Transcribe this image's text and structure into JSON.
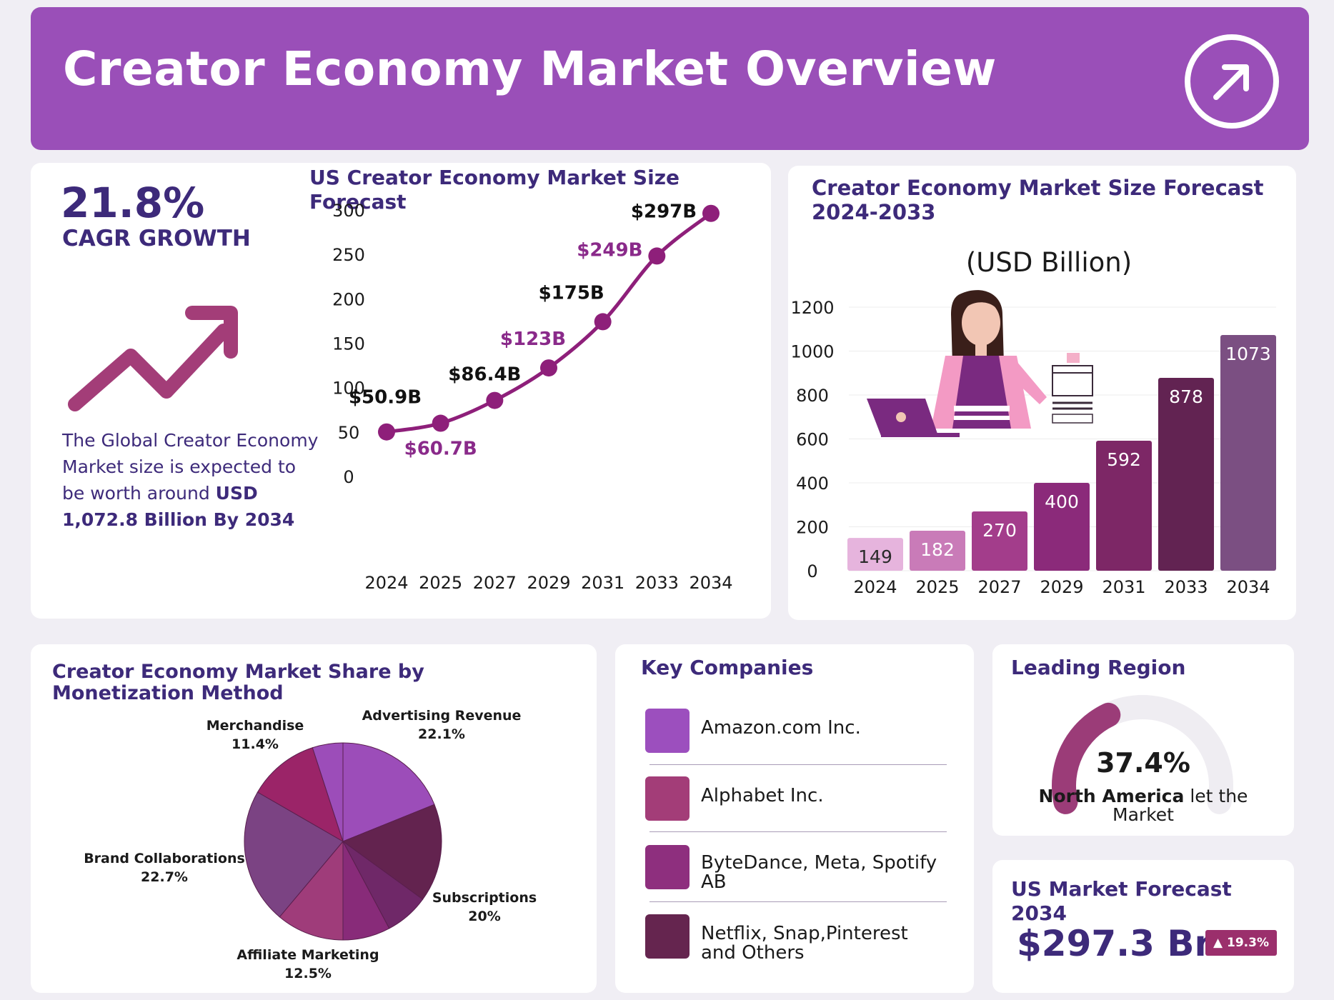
{
  "header": {
    "title": "Creator Economy Market Overview",
    "action_icon": "arrow-up-right-icon"
  },
  "cagr": {
    "value": "21.8%",
    "label": "CAGR GROWTH",
    "icon": "trend-up-arrow-icon",
    "desc_text": "The Global Creator Economy Market size is expected to be worth around ",
    "desc_bold": "USD 1,072.8 Billion By 2034"
  },
  "colors": {
    "banner": "#9a4fb8",
    "title_text": "#3d2a7a",
    "line": "#8e1f7a",
    "label_magenta": "#8a2a8a",
    "bars": [
      "#e6b4dd",
      "#c97bb8",
      "#a33d8b",
      "#8b2a7a",
      "#7d2766",
      "#622352",
      "#7b4f82"
    ],
    "pie": [
      "#9c4db9",
      "#63234f",
      "#6f2868",
      "#882b79",
      "#9f3c7a",
      "#7b4383",
      "#9b2468"
    ],
    "companies": [
      "#9c4fbe",
      "#a33d78",
      "#8e2f7e",
      "#65254f"
    ],
    "gauge_fill": "#9b3c78",
    "gauge_track": "#efedf2",
    "badge": "#9b2f6c"
  },
  "chart_data": [
    {
      "type": "line",
      "title": "US Creator Economy Market Size Forecast",
      "x": [
        "2024",
        "2025",
        "2027",
        "2029",
        "2031",
        "2033",
        "2034"
      ],
      "values": [
        50.9,
        60.7,
        86.4,
        123,
        175,
        249,
        297
      ],
      "point_labels": [
        "$50.9B",
        "$60.7B",
        "$86.4B",
        "$123B",
        "$175B",
        "$249B",
        "$297B"
      ],
      "label_colors": [
        "dark",
        "magenta",
        "dark",
        "magenta",
        "dark",
        "magenta",
        "dark"
      ],
      "ylim": [
        0,
        300
      ],
      "yticks": [
        0,
        50,
        100,
        150,
        200,
        250,
        300
      ],
      "grid": false
    },
    {
      "type": "bar",
      "title": "Creator Economy Market Size Forecast 2024-2033",
      "subtitle": "(USD Billion)",
      "categories": [
        "2024",
        "2025",
        "2027",
        "2029",
        "2031",
        "2033",
        "2034"
      ],
      "values": [
        149,
        182,
        270,
        400,
        592,
        878,
        1073
      ],
      "ylim": [
        0,
        1200
      ],
      "yticks": [
        0,
        200,
        400,
        600,
        800,
        1000,
        1200
      ],
      "grid": true
    },
    {
      "type": "pie",
      "title": "Creator Economy Market Share by Monetization Method",
      "labels": [
        "Advertising Revenue",
        "Subscriptions",
        "Affiliate Marketing",
        "Brand Collaborations",
        "Merchandise"
      ],
      "values": [
        22.1,
        20,
        12.5,
        22.7,
        11.4
      ],
      "value_labels": [
        "22.1%",
        "20%",
        "12.5%",
        "22.7%",
        "11.4%"
      ]
    }
  ],
  "companies": {
    "title": "Key Companies",
    "items": [
      "Amazon.com Inc.",
      "Alphabet Inc.",
      "ByteDance, Meta, Spotify AB",
      "Netflix, Snap,Pinterest\nand Others"
    ]
  },
  "region": {
    "title": "Leading Region",
    "percent": "37.4%",
    "share": 37.4,
    "region_name": "North America",
    "rest_line1": " let the",
    "rest_line2": "Market"
  },
  "us_forecast": {
    "title": "US Market Forecast 2034",
    "value": "$297.3 Bn",
    "badge": "19.3%"
  }
}
